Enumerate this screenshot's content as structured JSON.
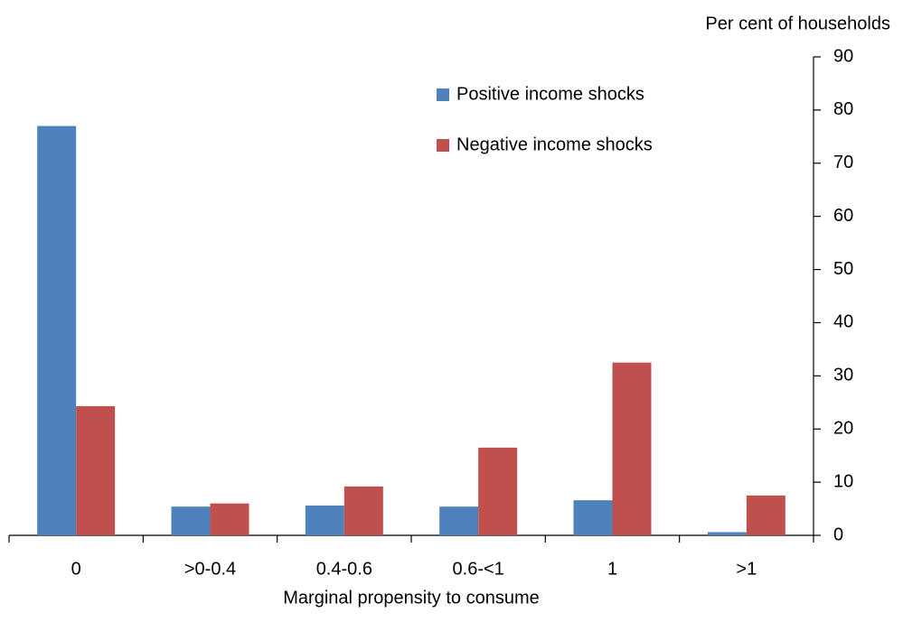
{
  "chart_data": {
    "type": "bar",
    "y_axis_title": "Per cent of households",
    "x_axis_title": "Marginal propensity to consume",
    "categories": [
      "0",
      ">0-0.4",
      "0.4-0.6",
      "0.6-<1",
      "1",
      ">1"
    ],
    "series": [
      {
        "name": "Positive income shocks",
        "color": "#4f81bd",
        "values": [
          77,
          5.4,
          5.6,
          5.4,
          6.6,
          0.6
        ]
      },
      {
        "name": "Negative income shocks",
        "color": "#c0504d",
        "values": [
          24.3,
          6,
          9.2,
          16.5,
          32.5,
          7.5
        ]
      }
    ],
    "ylim": [
      0,
      90
    ],
    "yticks": [
      0,
      10,
      20,
      30,
      40,
      50,
      60,
      70,
      80,
      90
    ],
    "y_axis_side": "right",
    "legend": "top"
  }
}
